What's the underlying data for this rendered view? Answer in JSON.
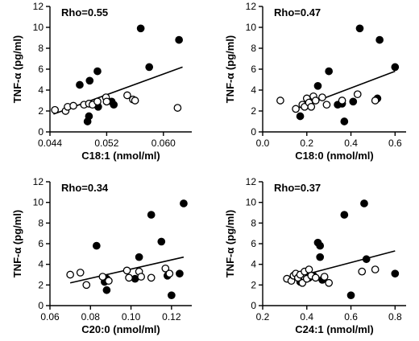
{
  "chart_data": [
    {
      "type": "scatter",
      "annotation": "Rho=0.55",
      "xlabel": "C18:1 (nmol/ml)",
      "ylabel": "TNF-α (pg/ml)",
      "xlim": [
        0.044,
        0.064
      ],
      "ylim": [
        0,
        12
      ],
      "xticks": [
        0.044,
        0.052,
        0.06
      ],
      "xtick_labels": [
        "0.044",
        "0.052",
        "0.060"
      ],
      "yticks": [
        0,
        2,
        4,
        6,
        8,
        10,
        12
      ],
      "ytick_labels": [
        "0",
        "2",
        "4",
        "6",
        "8",
        "10",
        "12"
      ],
      "regression_line": [
        [
          0.0445,
          1.7
        ],
        [
          0.0627,
          6.2
        ]
      ],
      "series": [
        {
          "marker": "filled",
          "points": [
            [
              0.0482,
              4.5
            ],
            [
              0.0496,
              4.9
            ],
            [
              0.0507,
              5.8
            ],
            [
              0.0493,
              1.0
            ],
            [
              0.0495,
              1.5
            ],
            [
              0.0508,
              2.4
            ],
            [
              0.0527,
              2.9
            ],
            [
              0.053,
              2.6
            ],
            [
              0.0568,
              9.9
            ],
            [
              0.058,
              6.2
            ],
            [
              0.0622,
              8.8
            ]
          ]
        },
        {
          "marker": "open",
          "points": [
            [
              0.0447,
              2.1
            ],
            [
              0.0462,
              2.0
            ],
            [
              0.0465,
              2.4
            ],
            [
              0.0473,
              2.5
            ],
            [
              0.0488,
              2.6
            ],
            [
              0.0495,
              2.7
            ],
            [
              0.05,
              2.6
            ],
            [
              0.0507,
              2.9
            ],
            [
              0.0519,
              3.3
            ],
            [
              0.052,
              2.9
            ],
            [
              0.0549,
              3.5
            ],
            [
              0.0557,
              3.1
            ],
            [
              0.056,
              3.0
            ],
            [
              0.062,
              2.3
            ]
          ]
        }
      ]
    },
    {
      "type": "scatter",
      "annotation": "Rho=0.47",
      "xlabel": "C18:0 (nmol/ml)",
      "ylabel": "TNF-α (pg/ml)",
      "xlim": [
        0.0,
        0.65
      ],
      "ylim": [
        0,
        12
      ],
      "xticks": [
        0.0,
        0.2,
        0.4,
        0.6
      ],
      "xtick_labels": [
        "0.0",
        "0.2",
        "0.4",
        "0.6"
      ],
      "yticks": [
        0,
        2,
        4,
        6,
        8,
        10,
        12
      ],
      "ytick_labels": [
        "0",
        "2",
        "4",
        "6",
        "8",
        "10",
        "12"
      ],
      "regression_line": [
        [
          0.15,
          2.2
        ],
        [
          0.6,
          5.8
        ]
      ],
      "series": [
        {
          "marker": "filled",
          "points": [
            [
              0.17,
              1.5
            ],
            [
              0.25,
              4.4
            ],
            [
              0.3,
              5.8
            ],
            [
              0.36,
              2.7
            ],
            [
              0.37,
              1.0
            ],
            [
              0.41,
              2.9
            ],
            [
              0.44,
              9.9
            ],
            [
              0.52,
              3.2
            ],
            [
              0.53,
              8.8
            ],
            [
              0.6,
              6.2
            ],
            [
              0.34,
              2.6
            ]
          ]
        },
        {
          "marker": "open",
          "points": [
            [
              0.08,
              3.0
            ],
            [
              0.15,
              2.2
            ],
            [
              0.18,
              2.6
            ],
            [
              0.19,
              2.4
            ],
            [
              0.2,
              3.2
            ],
            [
              0.21,
              2.8
            ],
            [
              0.22,
              2.4
            ],
            [
              0.23,
              3.4
            ],
            [
              0.24,
              3.0
            ],
            [
              0.27,
              3.3
            ],
            [
              0.29,
              2.6
            ],
            [
              0.36,
              3.0
            ],
            [
              0.43,
              3.6
            ],
            [
              0.51,
              3.0
            ]
          ]
        }
      ]
    },
    {
      "type": "scatter",
      "annotation": "Rho=0.34",
      "xlabel": "C20:0 (nmol/ml)",
      "ylabel": "TNF-α (pg/ml)",
      "xlim": [
        0.06,
        0.13
      ],
      "ylim": [
        0,
        12
      ],
      "xticks": [
        0.06,
        0.08,
        0.1,
        0.12
      ],
      "xtick_labels": [
        "0.06",
        "0.08",
        "0.10",
        "0.12"
      ],
      "yticks": [
        0,
        2,
        4,
        6,
        8,
        10,
        12
      ],
      "ytick_labels": [
        "0",
        "2",
        "4",
        "6",
        "8",
        "10",
        "12"
      ],
      "regression_line": [
        [
          0.07,
          2.2
        ],
        [
          0.126,
          4.7
        ]
      ],
      "series": [
        {
          "marker": "filled",
          "points": [
            [
              0.083,
              5.8
            ],
            [
              0.087,
              2.3
            ],
            [
              0.088,
              2.6
            ],
            [
              0.088,
              1.5
            ],
            [
              0.102,
              2.6
            ],
            [
              0.104,
              4.7
            ],
            [
              0.11,
              8.8
            ],
            [
              0.115,
              6.2
            ],
            [
              0.118,
              2.9
            ],
            [
              0.12,
              1.0
            ],
            [
              0.124,
              3.1
            ],
            [
              0.126,
              9.9
            ]
          ]
        },
        {
          "marker": "open",
          "points": [
            [
              0.07,
              3.0
            ],
            [
              0.075,
              3.2
            ],
            [
              0.078,
              2.0
            ],
            [
              0.086,
              2.8
            ],
            [
              0.089,
              2.4
            ],
            [
              0.098,
              3.4
            ],
            [
              0.099,
              2.7
            ],
            [
              0.104,
              3.3
            ],
            [
              0.105,
              2.8
            ],
            [
              0.11,
              2.7
            ],
            [
              0.117,
              3.6
            ],
            [
              0.119,
              3.1
            ]
          ]
        }
      ]
    },
    {
      "type": "scatter",
      "annotation": "Rho=0.37",
      "xlabel": "C24:1 (nmol/ml)",
      "ylabel": "TNF-α (pg/ml)",
      "xlim": [
        0.2,
        0.85
      ],
      "ylim": [
        0,
        12
      ],
      "xticks": [
        0.2,
        0.4,
        0.6,
        0.8
      ],
      "xtick_labels": [
        "0.2",
        "0.4",
        "0.6",
        "0.8"
      ],
      "yticks": [
        0,
        2,
        4,
        6,
        8,
        10,
        12
      ],
      "ytick_labels": [
        "0",
        "2",
        "4",
        "6",
        "8",
        "10",
        "12"
      ],
      "regression_line": [
        [
          0.32,
          2.6
        ],
        [
          0.8,
          5.3
        ]
      ],
      "series": [
        {
          "marker": "filled",
          "points": [
            [
              0.37,
              2.3
            ],
            [
              0.41,
              2.7
            ],
            [
              0.43,
              2.9
            ],
            [
              0.45,
              6.1
            ],
            [
              0.46,
              5.8
            ],
            [
              0.46,
              4.7
            ],
            [
              0.47,
              2.5
            ],
            [
              0.57,
              8.8
            ],
            [
              0.6,
              1.0
            ],
            [
              0.66,
              9.9
            ],
            [
              0.67,
              4.5
            ],
            [
              0.8,
              3.1
            ]
          ]
        },
        {
          "marker": "open",
          "points": [
            [
              0.31,
              2.6
            ],
            [
              0.33,
              2.4
            ],
            [
              0.34,
              2.9
            ],
            [
              0.35,
              3.1
            ],
            [
              0.36,
              2.7
            ],
            [
              0.37,
              3.0
            ],
            [
              0.38,
              2.2
            ],
            [
              0.39,
              3.3
            ],
            [
              0.4,
              2.6
            ],
            [
              0.41,
              3.5
            ],
            [
              0.42,
              2.9
            ],
            [
              0.44,
              2.7
            ],
            [
              0.48,
              2.8
            ],
            [
              0.5,
              2.2
            ],
            [
              0.65,
              3.3
            ],
            [
              0.71,
              3.5
            ]
          ]
        }
      ]
    }
  ]
}
